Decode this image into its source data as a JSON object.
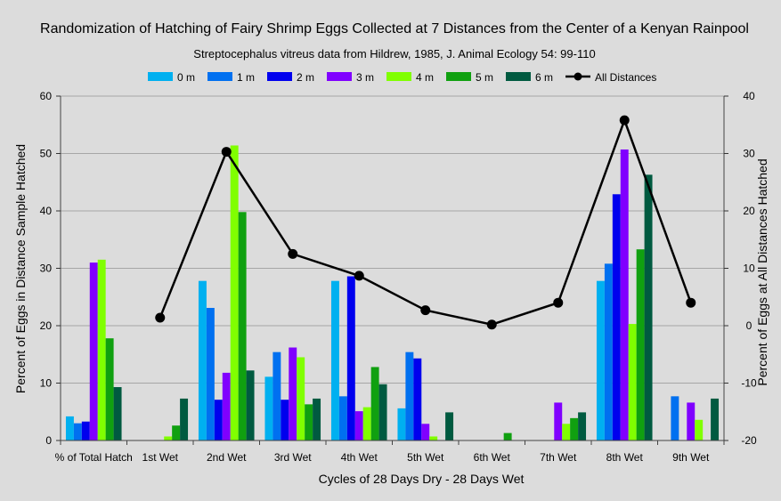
{
  "chart_data": {
    "type": "bar",
    "title": "Randomization of Hatching of Fairy Shrimp Eggs Collected at 7 Distances from the Center of a Kenyan Rainpool",
    "subtitle": "Streptocephalus vitreus data from Hildrew, 1985, J. Animal Ecology 54: 99-110",
    "xlabel": "Cycles of 28 Days Dry - 28 Days Wet",
    "ylabel": "Percent of Eggs in Distance Sample Hatched",
    "y2label": "Percent of Eggs at All Distances Hatched",
    "ylim": [
      0,
      60
    ],
    "y2lim": [
      -20,
      40
    ],
    "yticks": [
      "0",
      "10",
      "20",
      "30",
      "40",
      "50",
      "60"
    ],
    "y2ticks": [
      "-20",
      "-10",
      "0",
      "10",
      "20",
      "30",
      "40"
    ],
    "grid": true,
    "legend_position": "top",
    "categories": [
      "% of Total Hatch",
      "1st Wet",
      "2nd Wet",
      "3rd Wet",
      "4th Wet",
      "5th Wet",
      "6th Wet",
      "7th Wet",
      "8th Wet",
      "9th Wet"
    ],
    "series": [
      {
        "name": "0 m",
        "color": "#00b0f0",
        "values": [
          4.2,
          0,
          27.8,
          11.1,
          27.8,
          5.6,
          0,
          0,
          27.8,
          0
        ]
      },
      {
        "name": "1 m",
        "color": "#0070f0",
        "values": [
          3.0,
          0,
          23.1,
          15.4,
          7.7,
          15.4,
          0,
          0,
          30.8,
          7.7
        ]
      },
      {
        "name": "2 m",
        "color": "#0000ee",
        "values": [
          3.3,
          0,
          7.1,
          7.1,
          28.6,
          14.3,
          0,
          0,
          42.9,
          0
        ]
      },
      {
        "name": "3 m",
        "color": "#8000ff",
        "values": [
          31.0,
          0,
          11.8,
          16.2,
          5.1,
          2.9,
          0,
          6.6,
          50.7,
          6.6
        ]
      },
      {
        "name": "4 m",
        "color": "#80ff00",
        "values": [
          31.5,
          0.7,
          51.4,
          14.5,
          5.8,
          0.7,
          0,
          2.9,
          20.3,
          3.6
        ]
      },
      {
        "name": "5 m",
        "color": "#10a010",
        "values": [
          17.8,
          2.6,
          39.8,
          6.3,
          12.8,
          0,
          1.3,
          3.9,
          33.3,
          0
        ]
      },
      {
        "name": "6 m",
        "color": "#005a40",
        "values": [
          9.3,
          7.3,
          12.2,
          7.3,
          9.8,
          4.9,
          0,
          4.9,
          46.3,
          7.3
        ]
      }
    ],
    "line_series": {
      "name": "All Distances",
      "color": "#000000",
      "axis": "right",
      "values": [
        null,
        1.4,
        30.3,
        12.5,
        8.7,
        2.7,
        0.2,
        4.0,
        35.8,
        4.0
      ]
    }
  }
}
